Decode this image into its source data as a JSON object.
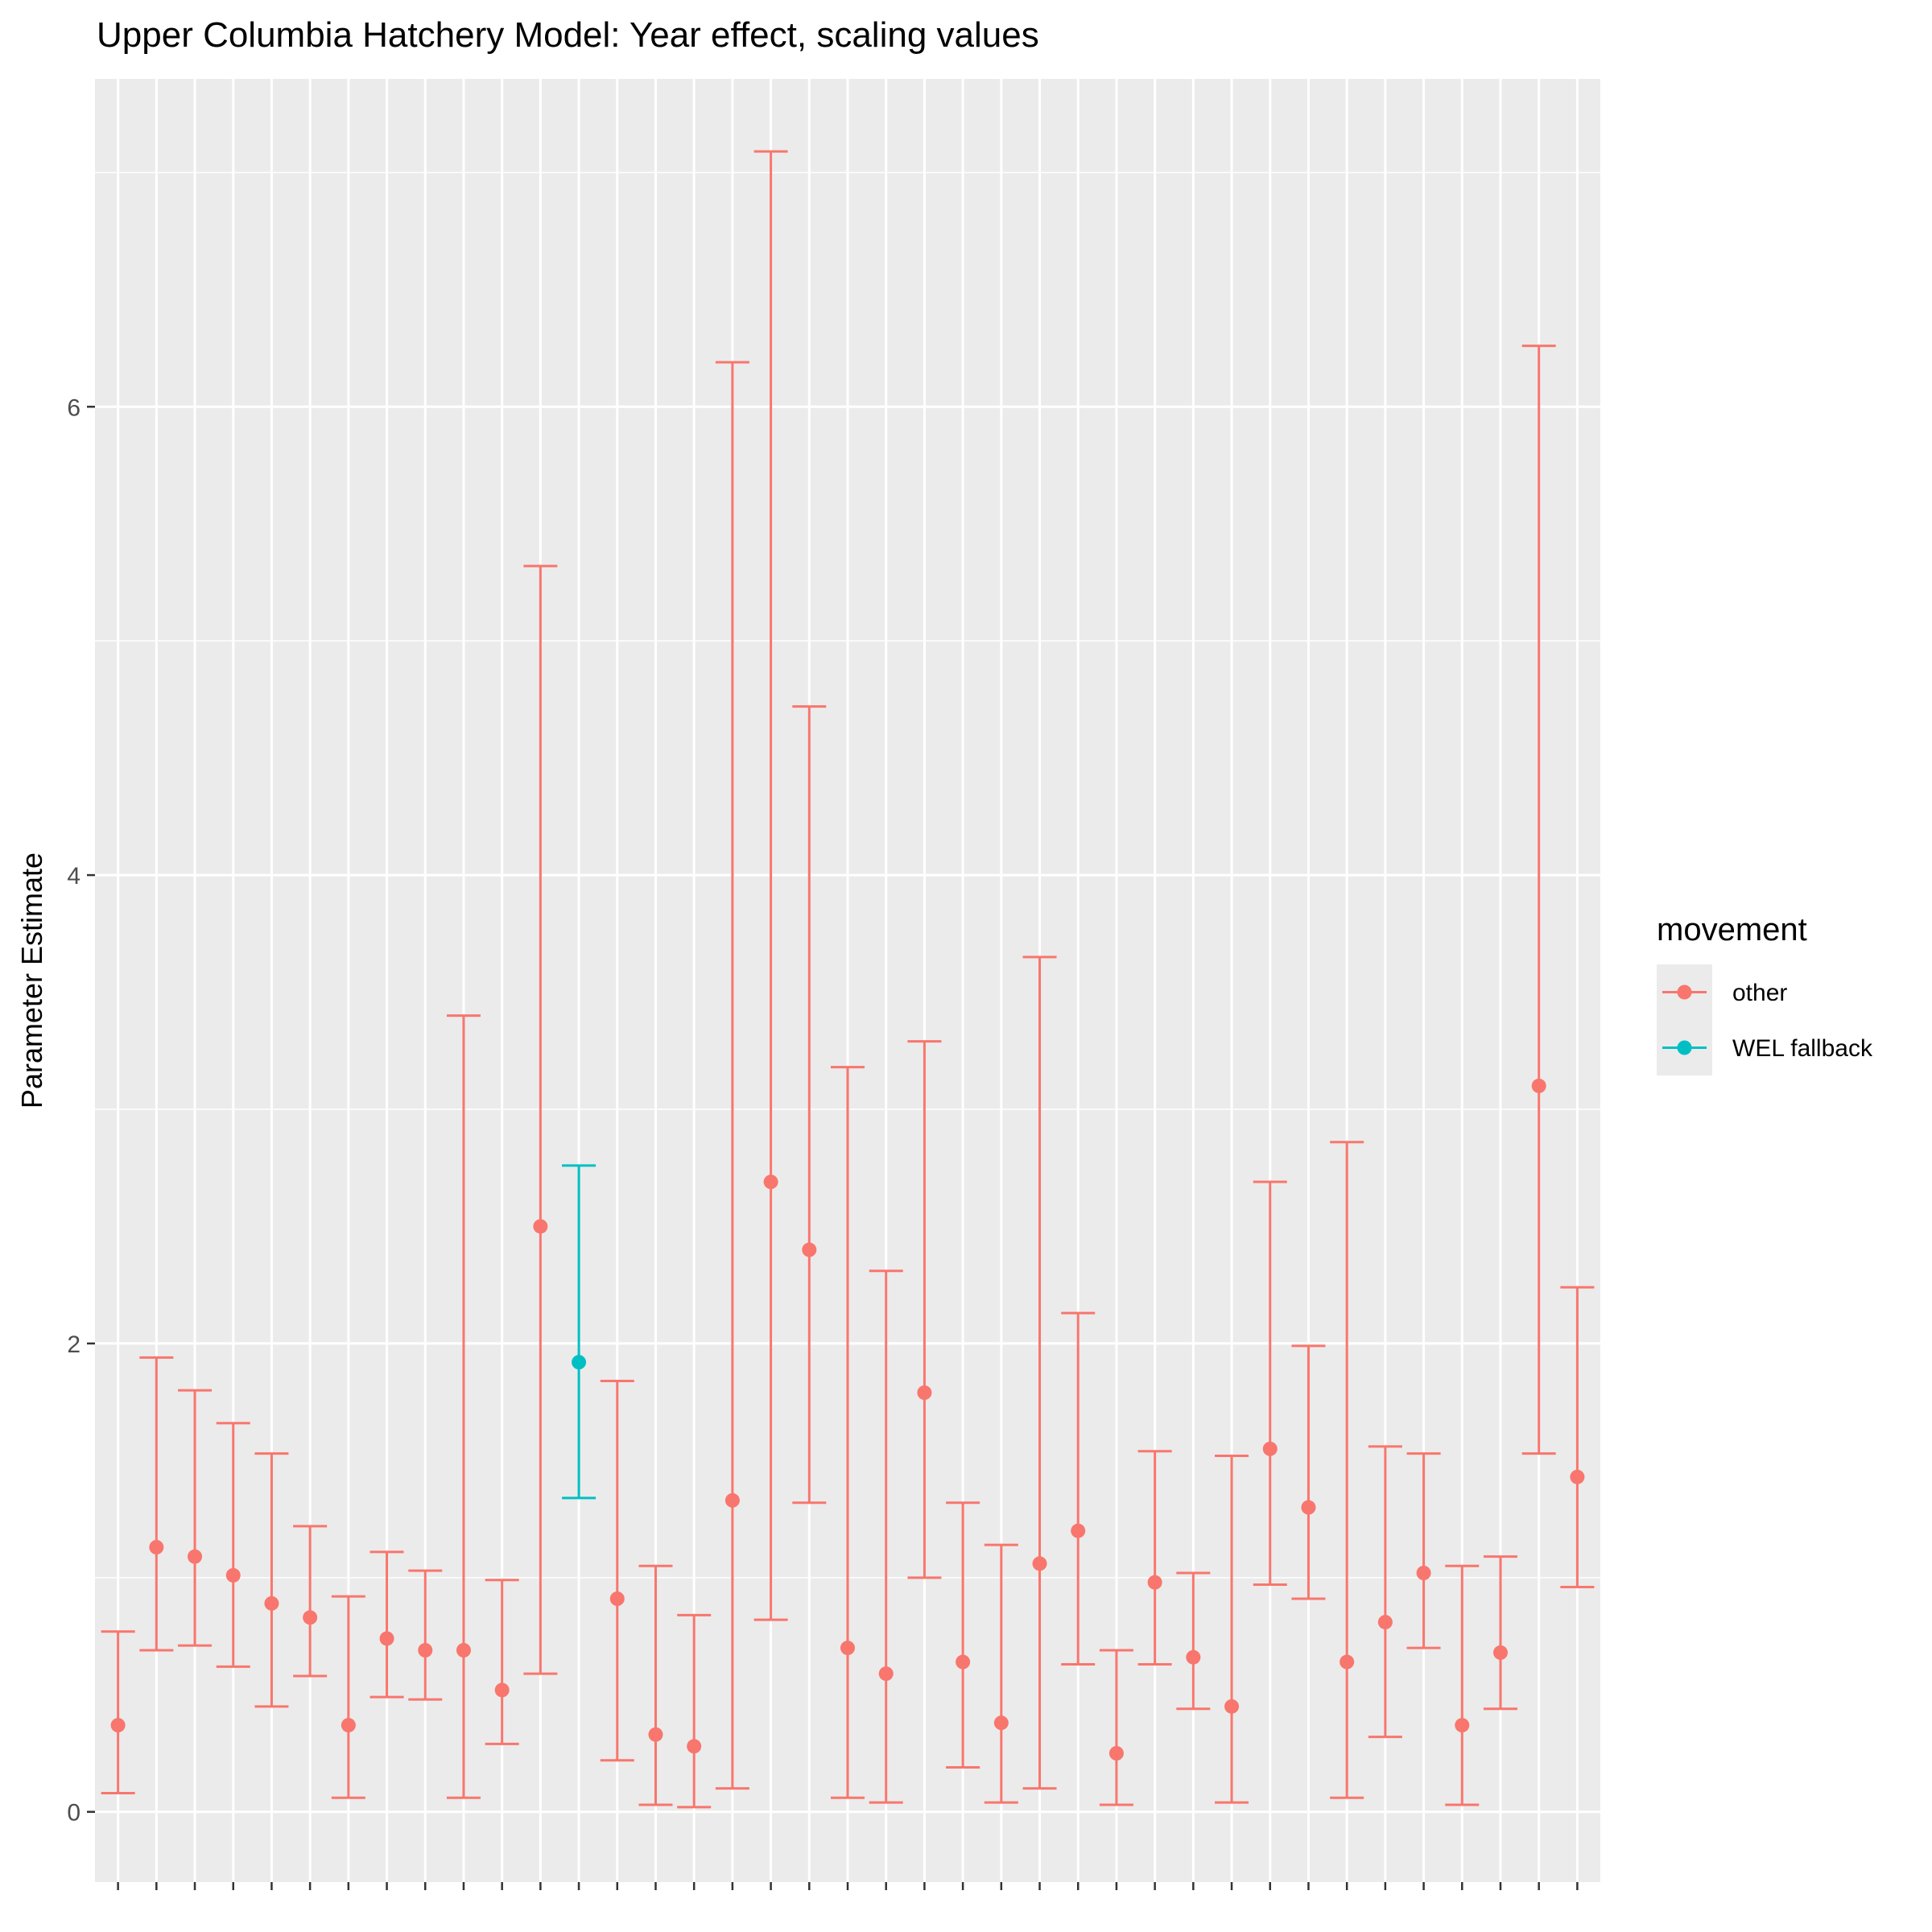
{
  "chart_data": {
    "type": "errorbar",
    "title": "Upper Columbia Hatchery Model: Year effect, scaling values",
    "xlabel": "",
    "ylabel": "Parameter Estimate",
    "ylim": [
      -0.3,
      7.4
    ],
    "yticks": [
      0,
      2,
      4,
      6
    ],
    "x_count": 39,
    "grid": true,
    "legend": {
      "title": "movement",
      "position": "right",
      "entries": [
        {
          "name": "other",
          "color": "#F8766D"
        },
        {
          "name": "WEL fallback",
          "color": "#00BFC4"
        }
      ]
    },
    "points": [
      {
        "x": 1,
        "y": 0.37,
        "lo": 0.08,
        "hi": 0.77,
        "group": "other"
      },
      {
        "x": 2,
        "y": 1.13,
        "lo": 0.69,
        "hi": 1.94,
        "group": "other"
      },
      {
        "x": 3,
        "y": 1.09,
        "lo": 0.71,
        "hi": 1.8,
        "group": "other"
      },
      {
        "x": 4,
        "y": 1.01,
        "lo": 0.62,
        "hi": 1.66,
        "group": "other"
      },
      {
        "x": 5,
        "y": 0.89,
        "lo": 0.45,
        "hi": 1.53,
        "group": "other"
      },
      {
        "x": 6,
        "y": 0.83,
        "lo": 0.58,
        "hi": 1.22,
        "group": "other"
      },
      {
        "x": 7,
        "y": 0.37,
        "lo": 0.06,
        "hi": 0.92,
        "group": "other"
      },
      {
        "x": 8,
        "y": 0.74,
        "lo": 0.49,
        "hi": 1.11,
        "group": "other"
      },
      {
        "x": 9,
        "y": 0.69,
        "lo": 0.48,
        "hi": 1.03,
        "group": "other"
      },
      {
        "x": 10,
        "y": 0.69,
        "lo": 0.06,
        "hi": 3.4,
        "group": "other"
      },
      {
        "x": 11,
        "y": 0.52,
        "lo": 0.29,
        "hi": 0.99,
        "group": "other"
      },
      {
        "x": 12,
        "y": 2.5,
        "lo": 0.59,
        "hi": 5.32,
        "group": "other"
      },
      {
        "x": 13,
        "y": 1.92,
        "lo": 1.34,
        "hi": 2.76,
        "group": "WEL fallback"
      },
      {
        "x": 14,
        "y": 0.91,
        "lo": 0.22,
        "hi": 1.84,
        "group": "other"
      },
      {
        "x": 15,
        "y": 0.33,
        "lo": 0.03,
        "hi": 1.05,
        "group": "other"
      },
      {
        "x": 16,
        "y": 0.28,
        "lo": 0.02,
        "hi": 0.84,
        "group": "other"
      },
      {
        "x": 17,
        "y": 1.33,
        "lo": 0.1,
        "hi": 6.19,
        "group": "other"
      },
      {
        "x": 18,
        "y": 2.69,
        "lo": 0.82,
        "hi": 7.09,
        "group": "other"
      },
      {
        "x": 19,
        "y": 2.4,
        "lo": 1.32,
        "hi": 4.72,
        "group": "other"
      },
      {
        "x": 20,
        "y": 0.7,
        "lo": 0.06,
        "hi": 3.18,
        "group": "other"
      },
      {
        "x": 21,
        "y": 0.59,
        "lo": 0.04,
        "hi": 2.31,
        "group": "other"
      },
      {
        "x": 22,
        "y": 1.79,
        "lo": 1.0,
        "hi": 3.29,
        "group": "other"
      },
      {
        "x": 23,
        "y": 0.64,
        "lo": 0.19,
        "hi": 1.32,
        "group": "other"
      },
      {
        "x": 24,
        "y": 0.38,
        "lo": 0.04,
        "hi": 1.14,
        "group": "other"
      },
      {
        "x": 25,
        "y": 1.06,
        "lo": 0.1,
        "hi": 3.65,
        "group": "other"
      },
      {
        "x": 26,
        "y": 1.2,
        "lo": 0.63,
        "hi": 2.13,
        "group": "other"
      },
      {
        "x": 27,
        "y": 0.25,
        "lo": 0.03,
        "hi": 0.69,
        "group": "other"
      },
      {
        "x": 28,
        "y": 0.98,
        "lo": 0.63,
        "hi": 1.54,
        "group": "other"
      },
      {
        "x": 29,
        "y": 0.66,
        "lo": 0.44,
        "hi": 1.02,
        "group": "other"
      },
      {
        "x": 30,
        "y": 0.45,
        "lo": 0.04,
        "hi": 1.52,
        "group": "other"
      },
      {
        "x": 31,
        "y": 1.55,
        "lo": 0.97,
        "hi": 2.69,
        "group": "other"
      },
      {
        "x": 32,
        "y": 1.3,
        "lo": 0.91,
        "hi": 1.99,
        "group": "other"
      },
      {
        "x": 33,
        "y": 0.64,
        "lo": 0.06,
        "hi": 2.86,
        "group": "other"
      },
      {
        "x": 34,
        "y": 0.81,
        "lo": 0.32,
        "hi": 1.56,
        "group": "other"
      },
      {
        "x": 35,
        "y": 1.02,
        "lo": 0.7,
        "hi": 1.53,
        "group": "other"
      },
      {
        "x": 36,
        "y": 0.37,
        "lo": 0.03,
        "hi": 1.05,
        "group": "other"
      },
      {
        "x": 37,
        "y": 0.68,
        "lo": 0.44,
        "hi": 1.09,
        "group": "other"
      },
      {
        "x": 38,
        "y": 3.1,
        "lo": 1.53,
        "hi": 6.26,
        "group": "other"
      },
      {
        "x": 39,
        "y": 1.43,
        "lo": 0.96,
        "hi": 2.24,
        "group": "other"
      }
    ]
  }
}
